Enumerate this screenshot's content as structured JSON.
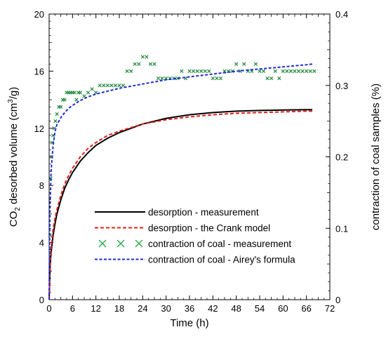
{
  "chart_data": {
    "type": "line",
    "xlabel": "Time (h)",
    "ylabel_left": {
      "prefix": "CO",
      "subscript": "2",
      "middle": " desorbed volume (cm",
      "superscript": "3",
      "suffix": "/g)"
    },
    "ylabel_right": "contraction  of coal samples (%)",
    "xlim": [
      0,
      72
    ],
    "ylim_left": [
      0,
      20
    ],
    "ylim_right": [
      0,
      0.4
    ],
    "xticks": [
      "0",
      "6",
      "12",
      "18",
      "24",
      "30",
      "36",
      "42",
      "48",
      "54",
      "60",
      "66",
      "72"
    ],
    "yticks_left": [
      "0",
      "4",
      "8",
      "12",
      "16",
      "20"
    ],
    "yticks_right": [
      "0",
      "0.1",
      "0.2",
      "0.3",
      "0.4"
    ],
    "legend_position": "center-bottom",
    "colors": {
      "desorption_measurement": "#000000",
      "crank_model": "#e0201b",
      "contraction_measurement": "#1f8a3a",
      "aireys_formula": "#1f2bd6"
    },
    "series": [
      {
        "name": "desorption - measurement",
        "axis": "left",
        "style": "solid",
        "x": [
          0,
          0.25,
          0.5,
          1,
          1.5,
          2,
          3,
          4,
          5,
          6,
          8,
          10,
          12,
          15,
          18,
          21,
          24,
          30,
          36,
          42,
          48,
          54,
          60,
          66,
          67.5
        ],
        "y": [
          0,
          2.3,
          3.3,
          4.5,
          5.3,
          6.0,
          7.0,
          7.8,
          8.4,
          8.9,
          9.7,
          10.3,
          10.8,
          11.3,
          11.7,
          12.0,
          12.3,
          12.7,
          12.95,
          13.1,
          13.2,
          13.25,
          13.28,
          13.3,
          13.3
        ]
      },
      {
        "name": "desorption - the Crank model",
        "axis": "left",
        "style": "dashed",
        "x": [
          0,
          0.25,
          0.5,
          1,
          1.5,
          2,
          3,
          4,
          5,
          6,
          8,
          10,
          12,
          15,
          18,
          21,
          24,
          30,
          36,
          42,
          48,
          54,
          60,
          66,
          67.5
        ],
        "y": [
          0,
          2.6,
          3.6,
          4.9,
          5.7,
          6.3,
          7.3,
          8.1,
          8.7,
          9.2,
          10.0,
          10.6,
          11.0,
          11.5,
          11.8,
          12.05,
          12.3,
          12.6,
          12.8,
          12.95,
          13.05,
          13.1,
          13.15,
          13.2,
          13.2
        ]
      },
      {
        "name": "contraction of coal - measurement",
        "axis": "right",
        "style": "markers",
        "x": [
          0.2,
          0.4,
          0.6,
          0.8,
          1.0,
          1.3,
          1.6,
          2.0,
          2.5,
          3.0,
          3.5,
          4.0,
          4.5,
          5.0,
          5.5,
          6.0,
          6.5,
          7.0,
          7.5,
          8.0,
          9.0,
          10.0,
          11.0,
          12.0,
          13.0,
          14.0,
          15.0,
          16.0,
          17.0,
          18.0,
          19.0,
          20.0,
          21.0,
          22.0,
          23.0,
          24.0,
          25.0,
          26.0,
          27.0,
          28.0,
          29.0,
          30.0,
          31.0,
          32.0,
          33.0,
          34.0,
          35.0,
          36.0,
          37.0,
          38.0,
          39.0,
          40.0,
          41.0,
          42.0,
          43.0,
          44.0,
          45.0,
          46.0,
          47.0,
          48.0,
          49.0,
          50.0,
          51.0,
          52.0,
          53.0,
          54.0,
          55.0,
          56.0,
          57.0,
          58.0,
          59.0,
          60.0,
          61.0,
          62.0,
          63.0,
          64.0,
          65.0,
          66.0,
          67.0,
          68.0
        ],
        "y": [
          0.09,
          0.17,
          0.2,
          0.22,
          0.23,
          0.24,
          0.25,
          0.26,
          0.27,
          0.27,
          0.28,
          0.28,
          0.29,
          0.29,
          0.29,
          0.29,
          0.29,
          0.28,
          0.29,
          0.29,
          0.285,
          0.29,
          0.295,
          0.29,
          0.3,
          0.3,
          0.3,
          0.3,
          0.3,
          0.3,
          0.3,
          0.32,
          0.32,
          0.33,
          0.33,
          0.34,
          0.34,
          0.33,
          0.33,
          0.31,
          0.31,
          0.31,
          0.31,
          0.31,
          0.31,
          0.32,
          0.31,
          0.32,
          0.32,
          0.32,
          0.32,
          0.32,
          0.32,
          0.31,
          0.31,
          0.31,
          0.32,
          0.32,
          0.32,
          0.33,
          0.32,
          0.33,
          0.32,
          0.32,
          0.33,
          0.32,
          0.32,
          0.31,
          0.31,
          0.32,
          0.31,
          0.32,
          0.32,
          0.32,
          0.32,
          0.32,
          0.32,
          0.32,
          0.32,
          0.32
        ]
      },
      {
        "name": "contraction of coal - Airey's formula",
        "axis": "right",
        "style": "dotted",
        "x": [
          0,
          0.2,
          0.5,
          1,
          1.5,
          2,
          3,
          4,
          5,
          6,
          8,
          10,
          12,
          15,
          18,
          21,
          24,
          27,
          30,
          36,
          42,
          48,
          54,
          60,
          66,
          67.5
        ],
        "y": [
          0,
          0.12,
          0.18,
          0.215,
          0.235,
          0.245,
          0.255,
          0.262,
          0.268,
          0.272,
          0.279,
          0.284,
          0.288,
          0.292,
          0.296,
          0.299,
          0.302,
          0.305,
          0.308,
          0.312,
          0.316,
          0.32,
          0.323,
          0.326,
          0.329,
          0.33
        ]
      }
    ]
  }
}
